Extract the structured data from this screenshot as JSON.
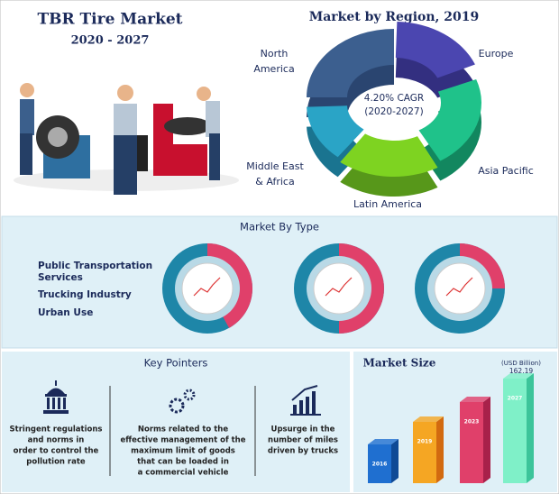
{
  "header": {
    "title": "TBR Tire Market",
    "subtitle": "2020 - 2027"
  },
  "region": {
    "title": "Market by Region, 2019",
    "center": [
      "4.20% CAGR",
      "(2020-2027)"
    ],
    "labels": {
      "north_america": [
        "North",
        "America"
      ],
      "europe": [
        "Europe"
      ],
      "asia_pacific": [
        "Asia Pacific"
      ],
      "latin_america": [
        "Latin America"
      ],
      "middle_east": [
        "Middle East",
        "& Africa"
      ]
    }
  },
  "type": {
    "title": "Market By Type",
    "items": [
      [
        "Public Transportation",
        "Services"
      ],
      [
        "Trucking Industry"
      ],
      [
        "Urban Use"
      ]
    ]
  },
  "pointers": {
    "title": "Key Pointers",
    "items": [
      [
        "Stringent regulations",
        "and norms in",
        "order to control the",
        "pollution rate"
      ],
      [
        "Norms related to the",
        "effective management of the",
        "maximum limit of goods",
        "that can be loaded in",
        "a commercial vehicle"
      ],
      [
        "Upsurge in the",
        "number of miles",
        "driven by trucks"
      ]
    ]
  },
  "size": {
    "title": "Market Size",
    "unit": "(USD Billion)",
    "value": "162.19",
    "years": [
      "2016",
      "2019",
      "2023",
      "2027"
    ]
  }
}
